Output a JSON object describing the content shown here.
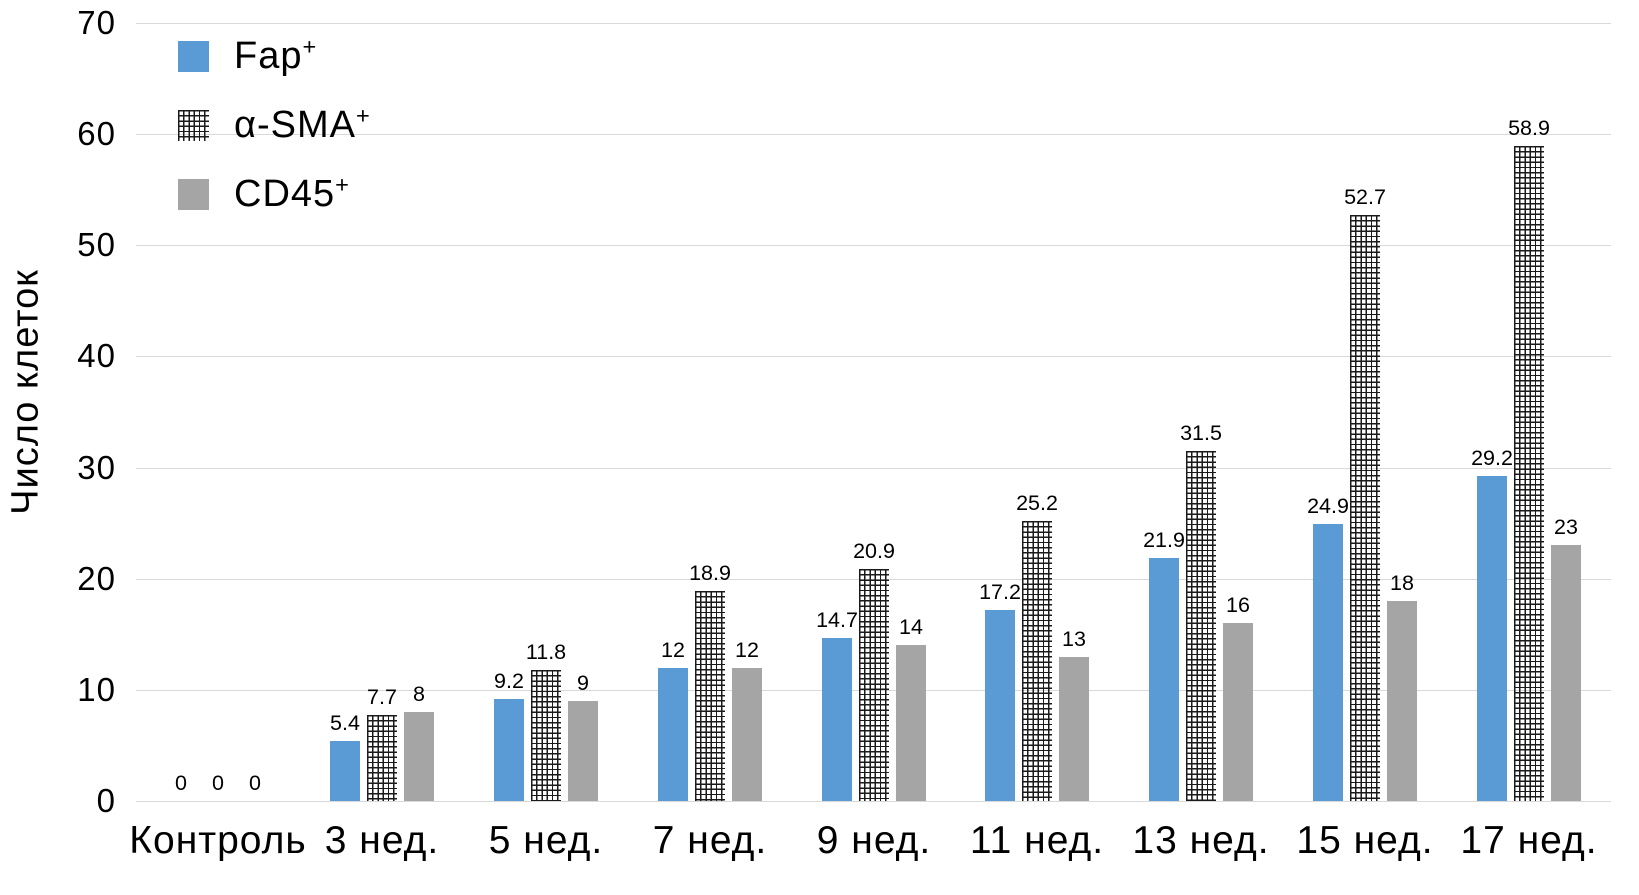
{
  "chart_data": {
    "type": "bar",
    "ylabel": "Число клеток",
    "xlabel": "",
    "ylim": [
      0,
      70
    ],
    "ytick_step": 10,
    "grid": true,
    "legend_position": "top-left-inside",
    "value_labels_shown": true,
    "categories": [
      "Контроль",
      "3 нед.",
      "5 нед.",
      "7 нед.",
      "9 нед.",
      "11 нед.",
      "13 нед.",
      "15 нед.",
      "17 нед."
    ],
    "series": [
      {
        "id": "fap",
        "name": "Fap",
        "superscript": "+",
        "fill": "solid",
        "color": "#5B9BD5",
        "values": [
          0,
          5.4,
          9.2,
          12,
          14.7,
          17.2,
          21.9,
          24.9,
          29.2
        ]
      },
      {
        "id": "a-sma",
        "name": "α-SMA",
        "superscript": "+",
        "fill": "crosshatch",
        "color": "#1a1a1a",
        "values": [
          0,
          7.7,
          11.8,
          18.9,
          20.9,
          25.2,
          31.5,
          52.7,
          58.9
        ]
      },
      {
        "id": "cd45",
        "name": "CD45",
        "superscript": "+",
        "fill": "solid",
        "color": "#A5A5A5",
        "values": [
          0,
          8,
          9,
          12,
          14,
          13,
          16,
          18,
          23
        ]
      }
    ],
    "colors": {
      "gridline": "#d9d9d9",
      "text": "#000000"
    }
  }
}
